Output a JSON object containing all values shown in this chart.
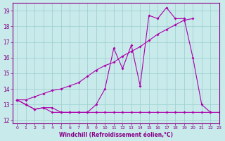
{
  "x": [
    0,
    1,
    2,
    3,
    4,
    5,
    6,
    7,
    8,
    9,
    10,
    11,
    12,
    13,
    14,
    15,
    16,
    17,
    18,
    19,
    20,
    21,
    22,
    23
  ],
  "line1": [
    13.3,
    13.0,
    12.7,
    12.8,
    12.8,
    12.5,
    12.5,
    12.5,
    12.5,
    13.0,
    14.0,
    16.6,
    15.3,
    16.8,
    14.2,
    18.7,
    18.5,
    19.2,
    18.5,
    18.5,
    16.0,
    13.0,
    12.5,
    null
  ],
  "line2": [
    13.3,
    13.0,
    12.7,
    12.8,
    12.5,
    12.5,
    12.5,
    12.5,
    12.5,
    12.5,
    12.5,
    12.5,
    12.5,
    12.5,
    12.5,
    12.5,
    12.5,
    12.5,
    12.5,
    12.5,
    12.5,
    12.5,
    12.5,
    12.5
  ],
  "line3": [
    13.3,
    13.3,
    13.5,
    13.7,
    13.9,
    14.0,
    14.2,
    14.4,
    14.8,
    15.2,
    15.5,
    15.7,
    16.1,
    16.4,
    16.7,
    17.1,
    17.5,
    17.8,
    18.1,
    18.4,
    18.5,
    null,
    null,
    null
  ],
  "ylim": [
    11.8,
    19.5
  ],
  "xlim": [
    -0.5,
    23
  ],
  "yticks": [
    12,
    13,
    14,
    15,
    16,
    17,
    18,
    19
  ],
  "xticks": [
    0,
    1,
    2,
    3,
    4,
    5,
    6,
    7,
    8,
    9,
    10,
    11,
    12,
    13,
    14,
    15,
    16,
    17,
    18,
    19,
    20,
    21,
    22,
    23
  ],
  "xlabel": "Windchill (Refroidissement éolien,°C)",
  "line_color": "#aa00aa",
  "bg_color": "#c8eaea",
  "grid_color": "#99cccc",
  "tick_color": "#880088",
  "label_color": "#880088"
}
